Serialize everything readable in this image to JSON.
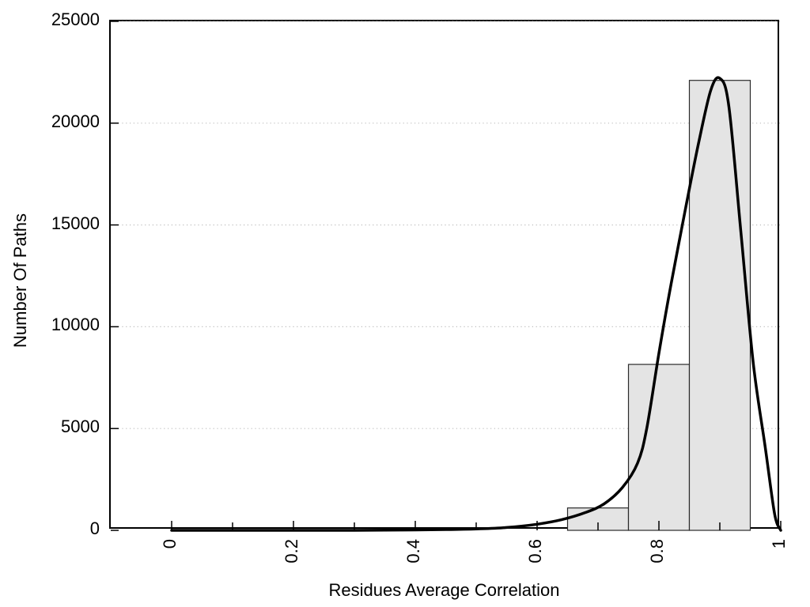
{
  "chart_data": {
    "type": "bar",
    "subtype": "histogram-with-density-curve",
    "title": "",
    "xlabel": "Residues Average Correlation",
    "ylabel": "Number Of Paths",
    "xlim": [
      -0.1,
      1.0
    ],
    "ylim": [
      0,
      25000
    ],
    "x_major_ticks": [
      0,
      0.2,
      0.4,
      0.6,
      0.8,
      1
    ],
    "x_major_tick_labels": [
      "0",
      "0.2",
      "0.4",
      "0.6",
      "0.8",
      "1"
    ],
    "x_minor_ticks": [
      0.1,
      0.3,
      0.5,
      0.7,
      0.9
    ],
    "y_ticks": [
      0,
      5000,
      10000,
      15000,
      20000,
      25000
    ],
    "y_tick_labels": [
      "0",
      "5000",
      "10000",
      "15000",
      "20000",
      "25000"
    ],
    "grid": {
      "horizontal": true,
      "vertical": false,
      "style": "dotted",
      "color": "#bdbdbd"
    },
    "frame": {
      "color": "#000000"
    },
    "histogram": {
      "bin_edges": [
        0.65,
        0.75,
        0.85,
        0.95
      ],
      "counts": [
        1100,
        8150,
        22100
      ],
      "fill": "#e4e4e4",
      "stroke": "#2b2b2b"
    },
    "density_curve": {
      "color": "#000000",
      "stroke_width": 3.5,
      "points": [
        [
          0.0,
          0
        ],
        [
          0.05,
          0
        ],
        [
          0.1,
          0
        ],
        [
          0.15,
          0
        ],
        [
          0.2,
          0
        ],
        [
          0.25,
          0
        ],
        [
          0.3,
          0
        ],
        [
          0.35,
          10
        ],
        [
          0.4,
          20
        ],
        [
          0.45,
          40
        ],
        [
          0.5,
          70
        ],
        [
          0.55,
          140
        ],
        [
          0.6,
          300
        ],
        [
          0.64,
          520
        ],
        [
          0.68,
          880
        ],
        [
          0.71,
          1300
        ],
        [
          0.74,
          2100
        ],
        [
          0.765,
          3300
        ],
        [
          0.78,
          5000
        ],
        [
          0.8,
          8700
        ],
        [
          0.82,
          12100
        ],
        [
          0.845,
          16000
        ],
        [
          0.865,
          19000
        ],
        [
          0.885,
          21600
        ],
        [
          0.9,
          22200
        ],
        [
          0.915,
          20800
        ],
        [
          0.935,
          14500
        ],
        [
          0.955,
          8200
        ],
        [
          0.975,
          4000
        ],
        [
          0.99,
          800
        ],
        [
          1.0,
          0
        ]
      ]
    }
  }
}
